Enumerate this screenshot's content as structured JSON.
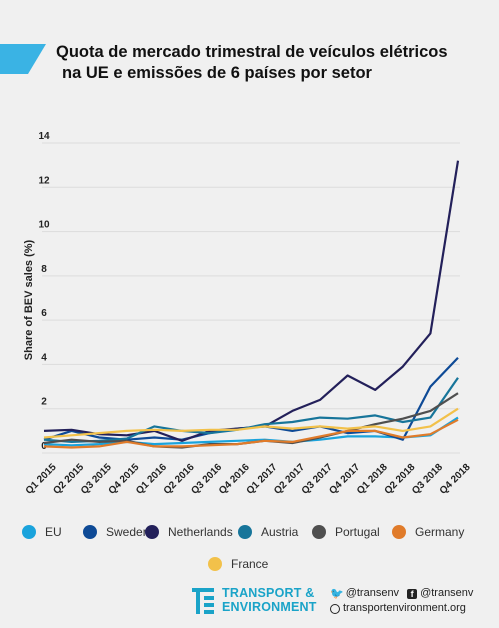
{
  "title_lines": [
    "Quota de mercado trimestral de veículos elétricos",
    "na UE e emissões de 6 países por setor"
  ],
  "chart_data": {
    "type": "line",
    "ylabel": "Share of BEV sales (%)",
    "xlabel": "",
    "ylim": [
      0,
      14
    ],
    "yticks": [
      0,
      2,
      4,
      6,
      8,
      10,
      12,
      14
    ],
    "categories": [
      "Q1 2015",
      "Q2 2015",
      "Q3 2015",
      "Q4 2015",
      "Q1 2016",
      "Q2 2016",
      "Q3 2016",
      "Q4 2016",
      "Q1 2017",
      "Q2 2017",
      "Q3 2017",
      "Q4 2017",
      "Q1 2018",
      "Q2 2018",
      "Q3 2018",
      "Q4 2018"
    ],
    "series": [
      {
        "name": "EU",
        "color": "#1aa3dc",
        "values": [
          0.4,
          0.35,
          0.4,
          0.5,
          0.4,
          0.45,
          0.5,
          0.55,
          0.6,
          0.5,
          0.6,
          0.75,
          0.75,
          0.7,
          0.8,
          1.6
        ]
      },
      {
        "name": "Sweden",
        "color": "#0e4a96",
        "values": [
          0.6,
          1.0,
          0.7,
          0.6,
          0.7,
          0.6,
          0.9,
          1.1,
          1.2,
          1.0,
          1.2,
          0.9,
          1.0,
          0.6,
          3.0,
          4.3
        ]
      },
      {
        "name": "Netherlands",
        "color": "#23205a",
        "values": [
          1.0,
          1.05,
          0.85,
          0.8,
          1.0,
          0.55,
          1.0,
          1.1,
          1.2,
          1.9,
          2.4,
          3.5,
          2.85,
          3.9,
          5.4,
          13.2
        ]
      },
      {
        "name": "Austria",
        "color": "#17759a",
        "values": [
          0.6,
          0.5,
          0.55,
          0.65,
          1.2,
          1.0,
          0.9,
          1.05,
          1.3,
          1.4,
          1.6,
          1.55,
          1.7,
          1.4,
          1.6,
          3.4
        ]
      },
      {
        "name": "Portugal",
        "color": "#4f4f4f",
        "values": [
          0.45,
          0.6,
          0.5,
          0.55,
          0.3,
          0.25,
          0.4,
          0.4,
          0.55,
          0.45,
          0.7,
          1.0,
          1.3,
          1.55,
          1.9,
          2.7
        ]
      },
      {
        "name": "Germany",
        "color": "#e07b2a",
        "values": [
          0.3,
          0.25,
          0.3,
          0.5,
          0.3,
          0.3,
          0.35,
          0.4,
          0.55,
          0.5,
          0.75,
          1.0,
          1.0,
          0.7,
          0.85,
          1.5
        ]
      },
      {
        "name": "France",
        "color": "#f2c14a",
        "values": [
          0.7,
          0.8,
          0.9,
          1.0,
          1.05,
          1.0,
          1.05,
          1.05,
          1.2,
          1.1,
          1.2,
          1.1,
          1.2,
          1.0,
          1.2,
          2.0
        ]
      }
    ]
  },
  "legend": [
    "EU",
    "Sweden",
    "Netherlands",
    "Austria",
    "Portugal",
    "Germany",
    "France"
  ],
  "footer": {
    "brand_line1": "TRANSPORT &",
    "brand_line2": "ENVIRONMENT",
    "twitter": "@transenv",
    "facebook": "@transenv",
    "website": "transportenvironment.org"
  },
  "colors": {
    "accent": "#1aa3c8",
    "corner": "#3ab3e4"
  }
}
